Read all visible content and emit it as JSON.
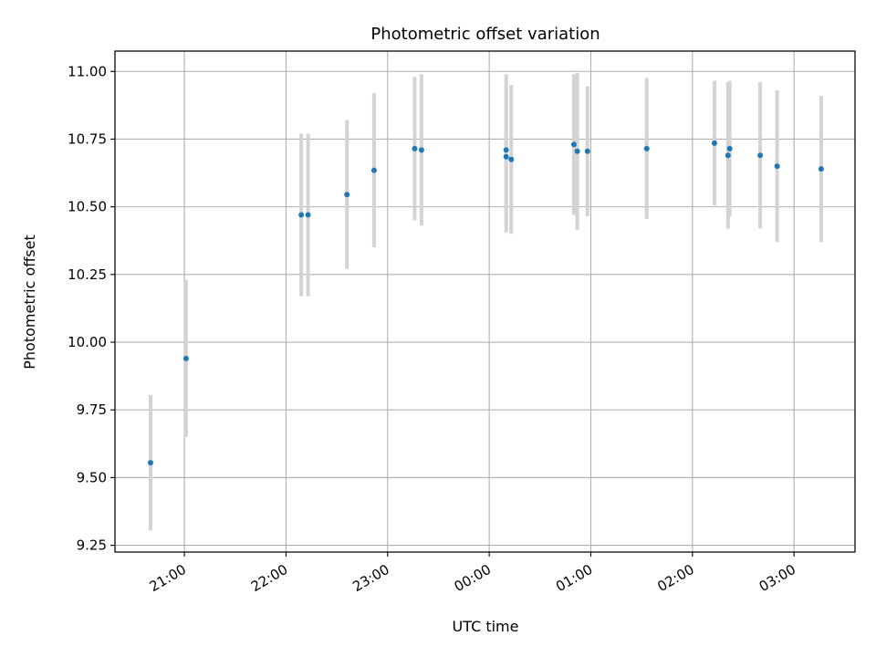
{
  "chart_data": {
    "type": "scatter",
    "title": "Photometric offset variation",
    "xlabel": "UTC time",
    "ylabel": "Photometric offset",
    "x_tick_labels": [
      "21:00",
      "22:00",
      "23:00",
      "00:00",
      "01:00",
      "02:00",
      "03:00"
    ],
    "y_tick_labels": [
      "9.25",
      "9.50",
      "9.75",
      "10.00",
      "10.25",
      "10.50",
      "10.75",
      "11.00"
    ],
    "ylim": [
      9.225,
      11.075
    ],
    "xlim": [
      "20:19",
      "03:36"
    ],
    "grid": true,
    "colors": {
      "marker": "#1f77b4",
      "errorbar": "#d3d3d3",
      "grid": "#b0b0b0"
    },
    "series": [
      {
        "points": [
          {
            "x": "20:40",
            "y": 9.555,
            "err": 0.25
          },
          {
            "x": "21:01",
            "y": 9.94,
            "err": 0.29
          },
          {
            "x": "22:09",
            "y": 10.47,
            "err": 0.3
          },
          {
            "x": "22:13",
            "y": 10.47,
            "err": 0.3
          },
          {
            "x": "22:36",
            "y": 10.545,
            "err": 0.275
          },
          {
            "x": "22:52",
            "y": 10.635,
            "err": 0.285
          },
          {
            "x": "23:16",
            "y": 10.715,
            "err": 0.265
          },
          {
            "x": "23:20",
            "y": 10.71,
            "err": 0.28
          },
          {
            "x": "00:10",
            "y": 10.71,
            "err": 0.28
          },
          {
            "x": "00:10",
            "y": 10.685,
            "err": 0.28
          },
          {
            "x": "00:13",
            "y": 10.675,
            "err": 0.275
          },
          {
            "x": "00:50",
            "y": 10.73,
            "err": 0.26
          },
          {
            "x": "00:52",
            "y": 10.705,
            "err": 0.29
          },
          {
            "x": "00:58",
            "y": 10.705,
            "err": 0.24
          },
          {
            "x": "01:33",
            "y": 10.715,
            "err": 0.26
          },
          {
            "x": "02:13",
            "y": 10.735,
            "err": 0.23
          },
          {
            "x": "02:21",
            "y": 10.69,
            "err": 0.27
          },
          {
            "x": "02:22",
            "y": 10.715,
            "err": 0.25
          },
          {
            "x": "02:40",
            "y": 10.69,
            "err": 0.27
          },
          {
            "x": "02:50",
            "y": 10.65,
            "err": 0.28
          },
          {
            "x": "03:16",
            "y": 10.64,
            "err": 0.27
          }
        ]
      }
    ]
  }
}
